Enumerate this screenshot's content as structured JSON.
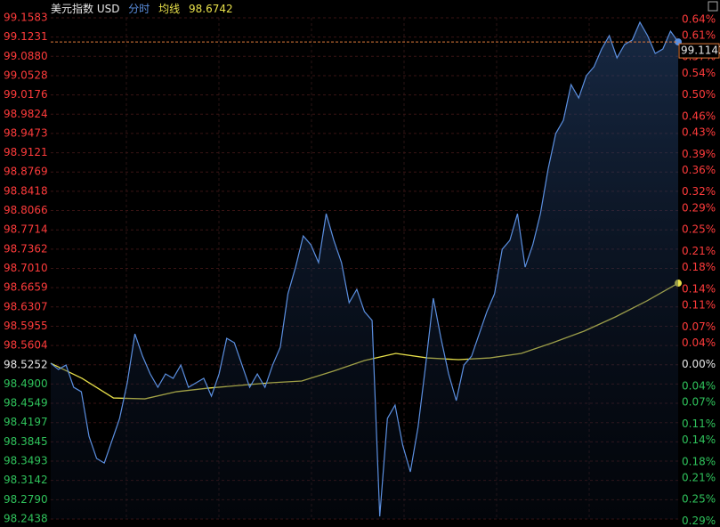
{
  "chart_data": {
    "type": "line",
    "title": "美元指数 USD",
    "ylim": [
      98.2438,
      99.1583
    ],
    "yticks": [
      99.1583,
      99.1231,
      {
        "value": 99.088,
        "label": "99.0880"
      },
      99.0528,
      99.0176,
      98.9824,
      98.9473,
      98.9121,
      98.8769,
      98.8418,
      98.8066,
      98.7714,
      98.7362,
      {
        "value": 98.701,
        "label": "98.7010"
      },
      98.6659,
      98.6307,
      98.5955,
      98.5604,
      98.5252,
      {
        "value": 98.49,
        "label": "98.4900"
      },
      98.4549,
      98.4197,
      98.3845,
      98.3493,
      98.3142,
      {
        "value": 98.279,
        "label": "98.2790"
      },
      98.2438
    ],
    "y2lim": [
      -0.286,
      0.643
    ],
    "y2ticks": [
      {
        "value": 0.64,
        "label": "0.64%"
      },
      {
        "value": 0.61,
        "label": "0.61%"
      },
      {
        "value": 0.57,
        "label": "0.57%"
      },
      {
        "value": 0.54,
        "label": "0.54%"
      },
      {
        "value": 0.5,
        "label": "0.50%"
      },
      {
        "value": 0.46,
        "label": "0.46%"
      },
      {
        "value": 0.43,
        "label": "0.43%"
      },
      {
        "value": 0.39,
        "label": "0.39%"
      },
      {
        "value": 0.36,
        "label": "0.36%"
      },
      {
        "value": 0.32,
        "label": "0.32%"
      },
      {
        "value": 0.29,
        "label": "0.29%"
      },
      {
        "value": 0.25,
        "label": "0.25%"
      },
      {
        "value": 0.21,
        "label": "0.21%"
      },
      {
        "value": 0.18,
        "label": "0.18%"
      },
      {
        "value": 0.14,
        "label": "0.14%"
      },
      {
        "value": 0.11,
        "label": "0.11%"
      },
      {
        "value": 0.07,
        "label": "0.07%"
      },
      {
        "value": 0.04,
        "label": "0.04%"
      },
      {
        "value": 0,
        "label": "0.00%"
      },
      {
        "value": -0.04,
        "label": "0.04%"
      },
      {
        "value": -0.07,
        "label": "0.07%"
      },
      {
        "value": -0.11,
        "label": "0.11%"
      },
      {
        "value": -0.14,
        "label": "0.14%"
      },
      {
        "value": -0.18,
        "label": "0.18%"
      },
      {
        "value": -0.21,
        "label": "0.21%"
      },
      {
        "value": -0.25,
        "label": "0.25%"
      },
      {
        "value": -0.29,
        "label": "0.29%"
      }
    ],
    "grid": true,
    "up_color": "#ff3b3b",
    "down_color": "#2fc25b",
    "flat_color": "#e6e6e6",
    "series": [
      {
        "name": "分时",
        "color": "#5b8fe0",
        "values": [
          98.528,
          98.5166,
          98.5247,
          98.4841,
          98.476,
          98.3948,
          98.3542,
          98.346,
          98.3867,
          98.4273,
          98.4923,
          98.5816,
          98.541,
          98.5085,
          98.4841,
          98.5085,
          98.5004,
          98.5247,
          98.4841,
          98.4923,
          98.5004,
          98.4679,
          98.5085,
          98.5735,
          98.5654,
          98.5247,
          98.4841,
          98.5085,
          98.4841,
          98.5247,
          98.5572,
          98.6547,
          98.7034,
          98.7603,
          98.7441,
          98.7116,
          98.8009,
          98.7522,
          98.7116,
          98.6385,
          98.6628,
          98.6222,
          98.606,
          98.2486,
          98.4273,
          98.4516,
          98.3785,
          98.3298,
          98.411,
          98.5247,
          98.6466,
          98.5735,
          98.5085,
          98.4598,
          98.5247,
          98.541,
          98.5816,
          98.6222,
          98.6547,
          98.7359,
          98.7522,
          98.8009,
          98.7034,
          98.7441,
          98.8009,
          98.8821,
          98.9471,
          98.9715,
          99.0365,
          99.0121,
          99.0527,
          99.069,
          99.1014,
          99.1258,
          99.0852,
          99.1096,
          99.1177,
          99.1502,
          99.1258,
          99.0933,
          99.1014,
          99.1339,
          99.1143
        ]
      },
      {
        "name": "均线",
        "color": "#e8e04a",
        "values": [
          98.528,
          98.5004,
          98.4646,
          98.463,
          98.476,
          98.4825,
          98.4874,
          98.4923,
          98.4955,
          98.5134,
          98.5329,
          98.5459,
          98.5377,
          98.5345,
          98.5377,
          98.5459,
          98.5654,
          98.5865,
          98.6125,
          98.6417,
          98.6742
        ]
      }
    ]
  }
}
